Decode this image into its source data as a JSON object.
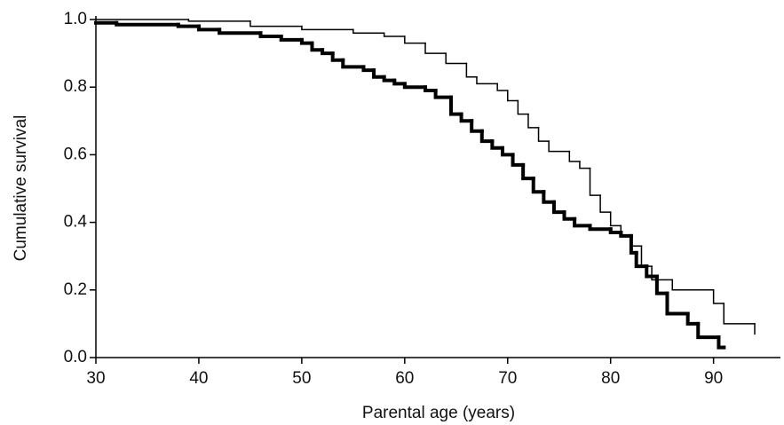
{
  "chart_data": {
    "type": "step",
    "x_label": "Parental age (years)",
    "y_label": "Cumulative survival",
    "xlim": [
      30,
      96.5
    ],
    "xticks": [
      30,
      40,
      50,
      60,
      70,
      80,
      90
    ],
    "ylim": [
      0,
      1.0
    ],
    "yticks": [
      {
        "value": 0,
        "label": "0.0"
      },
      0.2,
      0.4,
      0.6,
      0.8,
      {
        "value": 1.0,
        "label": "1.0"
      }
    ],
    "series": [
      {
        "color": "#000000",
        "line_width": 1.5,
        "x": [
          30,
          39,
          45,
          50,
          55,
          58,
          60,
          62,
          64,
          66,
          67,
          69,
          70,
          71,
          72,
          73,
          74,
          76,
          77,
          78,
          79,
          80,
          81,
          82,
          83,
          84,
          86,
          90,
          91,
          94
        ],
        "values": [
          1.0,
          0.995,
          0.98,
          0.97,
          0.96,
          0.95,
          0.93,
          0.9,
          0.87,
          0.83,
          0.81,
          0.79,
          0.76,
          0.72,
          0.68,
          0.64,
          0.61,
          0.58,
          0.56,
          0.48,
          0.43,
          0.39,
          0.36,
          0.33,
          0.27,
          0.23,
          0.2,
          0.16,
          0.1,
          0.07
        ]
      },
      {
        "color": "#000000",
        "line_width": 4,
        "x": [
          30,
          32,
          38,
          40,
          42,
          46,
          48,
          50,
          51,
          52,
          53,
          54,
          56,
          57,
          58,
          59,
          60,
          62,
          63,
          64.5,
          65.5,
          66.5,
          67.5,
          68.5,
          69.5,
          70.5,
          71.5,
          72.5,
          73.5,
          74.5,
          75.5,
          76.5,
          78,
          80,
          81,
          82,
          82.5,
          83.5,
          84.5,
          85.5,
          87.5,
          88.5,
          90.5,
          91
        ],
        "values": [
          0.99,
          0.985,
          0.98,
          0.97,
          0.96,
          0.95,
          0.94,
          0.93,
          0.91,
          0.9,
          0.88,
          0.86,
          0.85,
          0.83,
          0.82,
          0.81,
          0.8,
          0.79,
          0.77,
          0.72,
          0.7,
          0.67,
          0.64,
          0.62,
          0.6,
          0.57,
          0.53,
          0.49,
          0.46,
          0.43,
          0.41,
          0.39,
          0.38,
          0.37,
          0.36,
          0.31,
          0.27,
          0.24,
          0.19,
          0.13,
          0.1,
          0.06,
          0.03,
          0.03
        ]
      }
    ]
  }
}
